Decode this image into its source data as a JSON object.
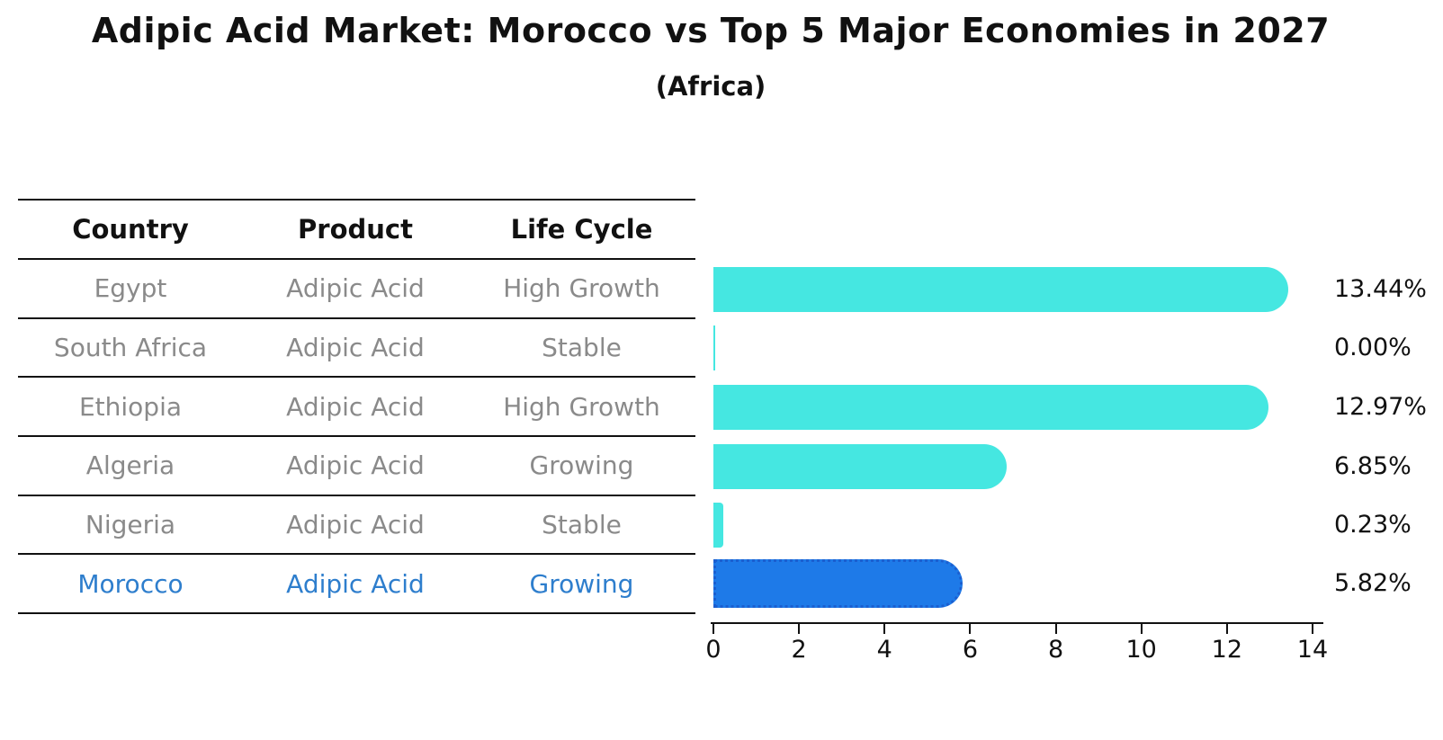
{
  "title": "Adipic Acid Market: Morocco vs Top 5 Major Economies in 2027",
  "subtitle": "(Africa)",
  "table": {
    "headers": [
      "Country",
      "Product",
      "Life Cycle"
    ],
    "rows": [
      {
        "country": "Egypt",
        "product": "Adipic Acid",
        "life_cycle": "High Growth",
        "highlight": false
      },
      {
        "country": "South Africa",
        "product": "Adipic Acid",
        "life_cycle": "Stable",
        "highlight": false
      },
      {
        "country": "Ethiopia",
        "product": "Adipic Acid",
        "life_cycle": "High Growth",
        "highlight": false
      },
      {
        "country": "Algeria",
        "product": "Adipic Acid",
        "life_cycle": "Growing",
        "highlight": false
      },
      {
        "country": "Nigeria",
        "product": "Adipic Acid",
        "life_cycle": "Stable",
        "highlight": false
      },
      {
        "country": "Morocco",
        "product": "Adipic Acid",
        "life_cycle": "Growing",
        "highlight": true
      }
    ]
  },
  "chart_data": {
    "type": "bar",
    "orientation": "horizontal",
    "title": "Adipic Acid Market: Morocco vs Top 5 Major Economies in 2027",
    "subtitle": "(Africa)",
    "categories": [
      "Egypt",
      "South Africa",
      "Ethiopia",
      "Algeria",
      "Nigeria",
      "Morocco"
    ],
    "values": [
      13.44,
      0.0,
      12.97,
      6.85,
      0.23,
      5.82
    ],
    "value_labels": [
      "13.44%",
      "0.00%",
      "12.97%",
      "6.85%",
      "0.23%",
      "5.82%"
    ],
    "xlim": [
      0,
      14
    ],
    "x_ticks": [
      0,
      2,
      4,
      6,
      8,
      10,
      12,
      14
    ],
    "x_tick_labels": [
      "0",
      "2",
      "4",
      "6",
      "8",
      "10",
      "12",
      "14"
    ],
    "highlight_index": 5,
    "grid": false,
    "legend": "none",
    "bar_color": "#45e7e1",
    "highlight_bar_color": "#1e7ae8",
    "highlight_border_color": "#1b5fd0",
    "highlight_text_color": "#2e7ecd",
    "row_text_color": "#8a8a8a",
    "axis_color": "#111111"
  }
}
